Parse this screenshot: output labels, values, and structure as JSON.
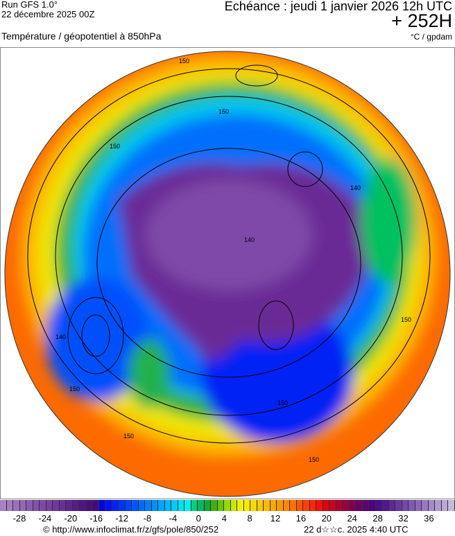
{
  "header": {
    "run": "Run GFS 1.0°",
    "run_date": "22 décembre 2025 00Z",
    "echeance": "Echéance : jeudi 1 janvier 2026 12h UTC",
    "lead": "+ 252H",
    "variable": "Température / géopotentiel à 850hPa",
    "units": "°C / gpdam"
  },
  "map": {
    "projection": "polar stereographic (north pole)",
    "contour_labels": [
      "150",
      "150",
      "150",
      "140",
      "150",
      "140",
      "150",
      "150",
      "150",
      "140",
      "150"
    ]
  },
  "colorbar": {
    "ticks": [
      "-28",
      "-24",
      "-20",
      "-16",
      "-12",
      "-8",
      "-4",
      "0",
      "4",
      "8",
      "12",
      "16",
      "20",
      "24",
      "28",
      "32",
      "36"
    ],
    "colors": [
      "#a882c4",
      "#a37cc0",
      "#9c70bb",
      "#9468b6",
      "#8a5cb0",
      "#8452a9",
      "#7e49a4",
      "#78409f",
      "#70389a",
      "#683095",
      "#5f268f",
      "#561d89",
      "#4e1684",
      "#48107f",
      "#440c7a",
      "#0000e8",
      "#0010f4",
      "#0024fc",
      "#0034fc",
      "#0046fc",
      "#0058fc",
      "#006afc",
      "#007cfc",
      "#0090fc",
      "#00a4fc",
      "#00b8fc",
      "#00ccf8",
      "#00e0f4",
      "#00f0f0",
      "#00d080",
      "#00b860",
      "#12a838",
      "#40b010",
      "#68c400",
      "#98d800",
      "#c8e800",
      "#f0f000",
      "#fce800",
      "#fcd800",
      "#fcc800",
      "#fcb800",
      "#fca800",
      "#fc9800",
      "#fc8800",
      "#fc7000",
      "#fc5800",
      "#fc4000",
      "#fc2800",
      "#f01010",
      "#e00010",
      "#c80020",
      "#b00030",
      "#980040",
      "#800050",
      "#6c0060",
      "#5c0070",
      "#500080",
      "#4a0c88",
      "#501890",
      "#5c2898",
      "#6838a0",
      "#7448a8",
      "#8058b0",
      "#8c68b8",
      "#9878c0",
      "#a488c8",
      "#b098d0",
      "#bca8d8",
      "#c8b8e0"
    ],
    "accent_outer": "#fc8000"
  },
  "footer": {
    "credit": "© http://www.infoclimat.fr/z/gfs/pole/850/252",
    "timestamp": "22 d☆☆c. 2025  4:40 UTC"
  }
}
